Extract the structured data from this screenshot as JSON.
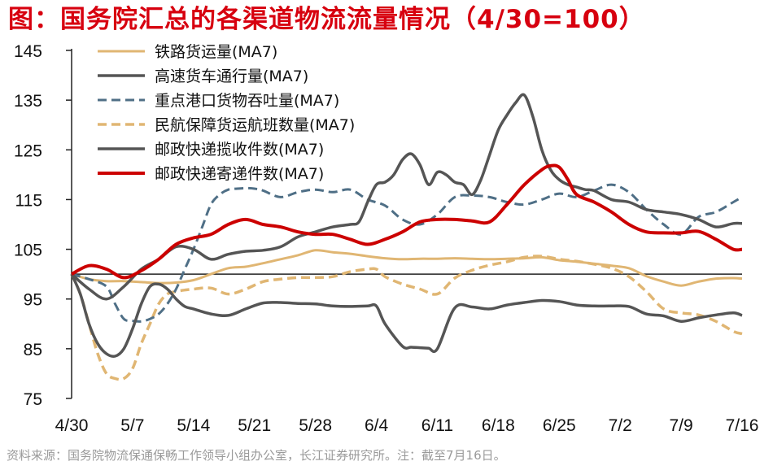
{
  "title": "图：国务院汇总的各渠道物流流量情况（4/30=100）",
  "source": "资料来源：国务院物流保通保畅工作领导小组办公室，长江证券研究所。注：截至7月16日。",
  "chart_data": {
    "type": "line",
    "title": "国务院汇总的各渠道物流流量情况（4/30=100）",
    "xlabel": "",
    "ylabel": "",
    "ylim": [
      75,
      145
    ],
    "yticks": [
      75,
      85,
      95,
      105,
      115,
      125,
      135,
      145
    ],
    "baseline": 100,
    "x_tick_labels": [
      "4/30",
      "5/7",
      "5/14",
      "5/21",
      "5/28",
      "6/4",
      "6/11",
      "6/18",
      "6/25",
      "7/2",
      "7/9",
      "7/16"
    ],
    "x_tick_days": [
      0,
      7,
      14,
      21,
      28,
      35,
      42,
      49,
      56,
      63,
      70,
      77
    ],
    "xlim": [
      0,
      77
    ],
    "legend_position": "top-left",
    "series": [
      {
        "name": "铁路货运量(MA7)",
        "color": "#e0b673",
        "style": "solid",
        "width": 3,
        "x": [
          0,
          2,
          4,
          6,
          8,
          10,
          12,
          14,
          16,
          18,
          20,
          22,
          24,
          26,
          28,
          30,
          32,
          34,
          36,
          38,
          40,
          42,
          44,
          46,
          48,
          50,
          52,
          54,
          56,
          58,
          60,
          62,
          64,
          66,
          68,
          70,
          72,
          74,
          76,
          77
        ],
        "y": [
          100,
          99,
          98.6,
          98.6,
          98.4,
          98.2,
          98.3,
          98.8,
          100,
          101.2,
          101.5,
          102.2,
          103,
          103.8,
          104.8,
          104.4,
          104.1,
          103.6,
          103.2,
          103,
          103.1,
          103.1,
          103.2,
          103.1,
          103,
          103.1,
          103.2,
          103.4,
          102.8,
          102.5,
          102.1,
          101.7,
          101.2,
          99.6,
          98.5,
          97.7,
          98.5,
          99.1,
          99.2,
          99.1
        ]
      },
      {
        "name": "高速货车通行量(MA7)",
        "color": "#555555",
        "style": "solid",
        "width": 3.5,
        "x": [
          0,
          1,
          2,
          3,
          4,
          5,
          6,
          7,
          8,
          9,
          10,
          11,
          12,
          13,
          14,
          16,
          18,
          20,
          22,
          24,
          26,
          28,
          30,
          32,
          34,
          35,
          36,
          38,
          39,
          40,
          41,
          42,
          44,
          46,
          48,
          50,
          52,
          54,
          56,
          58,
          60,
          62,
          64,
          66,
          68,
          70,
          72,
          74,
          76,
          77
        ],
        "y": [
          100,
          96,
          90,
          86,
          84,
          83.5,
          85,
          89,
          94,
          97.5,
          98,
          97,
          95,
          93.5,
          93,
          92,
          91.7,
          93,
          94.2,
          94.3,
          94.1,
          94,
          93.6,
          93.5,
          93.6,
          93.6,
          90,
          85.5,
          85.3,
          85.2,
          85.1,
          85,
          93.2,
          93.4,
          93,
          93.8,
          94.3,
          94.7,
          94.5,
          93.8,
          93.6,
          93.6,
          93.5,
          92,
          91.6,
          90.5,
          91.2,
          91.8,
          92.2,
          91.7
        ]
      },
      {
        "name": "重点港口货物吞吐量(MA7)",
        "color": "#4f6f86",
        "style": "dashed",
        "width": 3,
        "x": [
          0,
          2,
          4,
          5,
          6,
          7,
          8,
          9,
          10,
          11,
          12,
          13,
          14,
          15,
          16,
          17,
          18,
          19,
          20,
          21,
          22,
          24,
          26,
          28,
          30,
          32,
          34,
          36,
          38,
          40,
          42,
          44,
          46,
          48,
          50,
          52,
          54,
          56,
          58,
          60,
          62,
          64,
          66,
          68,
          70,
          72,
          74,
          76,
          77
        ],
        "y": [
          100,
          99,
          97.5,
          94,
          91,
          90.6,
          90.5,
          91,
          92,
          94,
          97,
          101,
          105,
          109.5,
          114,
          116,
          117,
          117.2,
          117.3,
          117.2,
          116.8,
          115.5,
          116.5,
          117,
          116.5,
          117,
          115,
          113.8,
          111,
          110,
          112,
          115.5,
          115.8,
          115.5,
          114.5,
          114,
          115,
          116.2,
          115.5,
          116.8,
          118,
          116.5,
          113,
          110,
          108,
          111.5,
          112.5,
          114.5,
          115.5
        ]
      },
      {
        "name": "民航保障货运航班数量(MA7)",
        "color": "#e0b673",
        "style": "dashed",
        "width": 3.5,
        "x": [
          0,
          1,
          2,
          3,
          4,
          5,
          6,
          7,
          8,
          9,
          10,
          11,
          12,
          13,
          14,
          16,
          18,
          20,
          22,
          24,
          26,
          28,
          30,
          32,
          34,
          35,
          36,
          38,
          40,
          42,
          44,
          46,
          48,
          50,
          52,
          54,
          56,
          58,
          60,
          62,
          64,
          66,
          68,
          70,
          72,
          74,
          76,
          77
        ],
        "y": [
          100,
          96,
          90,
          84,
          80,
          79,
          79,
          81,
          86,
          90,
          94,
          96,
          96.5,
          96.8,
          97,
          97.2,
          96,
          97,
          98.5,
          99,
          99.3,
          99.3,
          99.5,
          100.5,
          101,
          101,
          99.5,
          98,
          97,
          96,
          99.2,
          100.8,
          101.8,
          102.5,
          103.4,
          103.6,
          103,
          102.6,
          102,
          101.2,
          99.5,
          96.5,
          93,
          92.2,
          91.8,
          90.5,
          88.5,
          88
        ]
      },
      {
        "name": "邮政快递揽收件数(MA7)",
        "color": "#555555",
        "style": "solid",
        "width": 3.5,
        "x": [
          0,
          2,
          4,
          6,
          8,
          10,
          12,
          14,
          16,
          18,
          20,
          22,
          24,
          26,
          28,
          30,
          32,
          33,
          34,
          35,
          36,
          37,
          38,
          39,
          40,
          41,
          42,
          43,
          44,
          45,
          46,
          47,
          48,
          49,
          50,
          51,
          52,
          53,
          54,
          55,
          56,
          57,
          58,
          59,
          60,
          62,
          64,
          66,
          68,
          70,
          72,
          74,
          76,
          77
        ],
        "y": [
          100,
          97,
          95,
          97.5,
          101,
          103,
          105.5,
          105,
          103,
          104,
          104.6,
          104.8,
          105.5,
          107.5,
          108.5,
          109.5,
          110,
          110.5,
          114.5,
          118,
          118.5,
          120,
          123,
          124.2,
          122,
          118,
          120.5,
          120,
          118.5,
          118,
          116,
          119,
          124,
          129,
          132,
          134.5,
          136,
          131.5,
          125,
          121,
          119,
          118,
          117.5,
          117,
          116.8,
          115,
          114.5,
          113,
          112.5,
          112,
          111,
          109.5,
          110.2,
          110.2
        ]
      },
      {
        "name": "邮政快递寄递件数(MA7)",
        "color": "#cc0000",
        "style": "solid",
        "width": 4,
        "x": [
          0,
          2,
          4,
          6,
          8,
          10,
          12,
          14,
          16,
          18,
          20,
          22,
          24,
          26,
          28,
          30,
          32,
          34,
          36,
          38,
          40,
          42,
          44,
          46,
          48,
          50,
          52,
          54,
          55,
          56,
          57,
          58,
          60,
          62,
          64,
          66,
          68,
          70,
          72,
          74,
          76,
          77
        ],
        "y": [
          100,
          101.7,
          101,
          99.3,
          100.7,
          103,
          106,
          107.3,
          108,
          110,
          111,
          110,
          109.5,
          108.5,
          108,
          108,
          107,
          106,
          107,
          108.5,
          110.5,
          111,
          111,
          110.7,
          110.5,
          114,
          118,
          121,
          121.8,
          121.5,
          119,
          116,
          114.5,
          112.5,
          110,
          108.5,
          108.3,
          108.3,
          108.6,
          107,
          105,
          105
        ]
      }
    ]
  }
}
